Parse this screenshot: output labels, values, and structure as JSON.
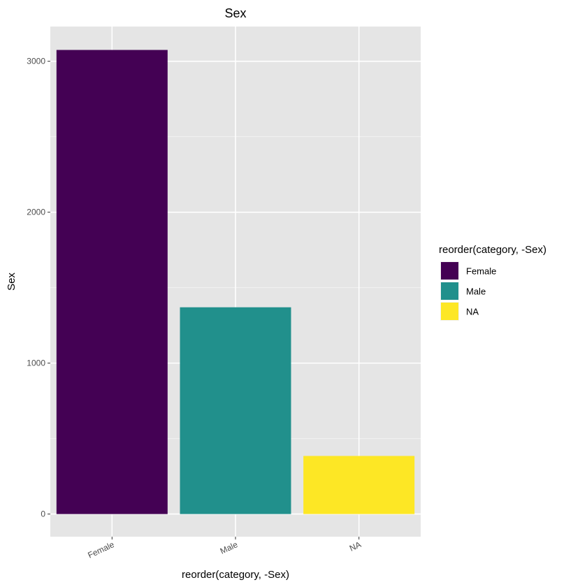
{
  "chart_data": {
    "type": "bar",
    "title": "Sex",
    "xlabel": "reorder(category, -Sex)",
    "ylabel": "Sex",
    "categories": [
      "Female",
      "Male",
      "NA"
    ],
    "values": [
      3075,
      1370,
      385
    ],
    "colors": [
      "#440154",
      "#21908C",
      "#FDE725"
    ],
    "ylim": [
      -150,
      3230
    ],
    "yticks": [
      0,
      1000,
      2000,
      3000
    ],
    "grid": true,
    "panel_background": "#E5E5E5",
    "legend": {
      "title": "reorder(category, -Sex)",
      "placement": "right",
      "entries": [
        "Female",
        "Male",
        "NA"
      ]
    }
  }
}
